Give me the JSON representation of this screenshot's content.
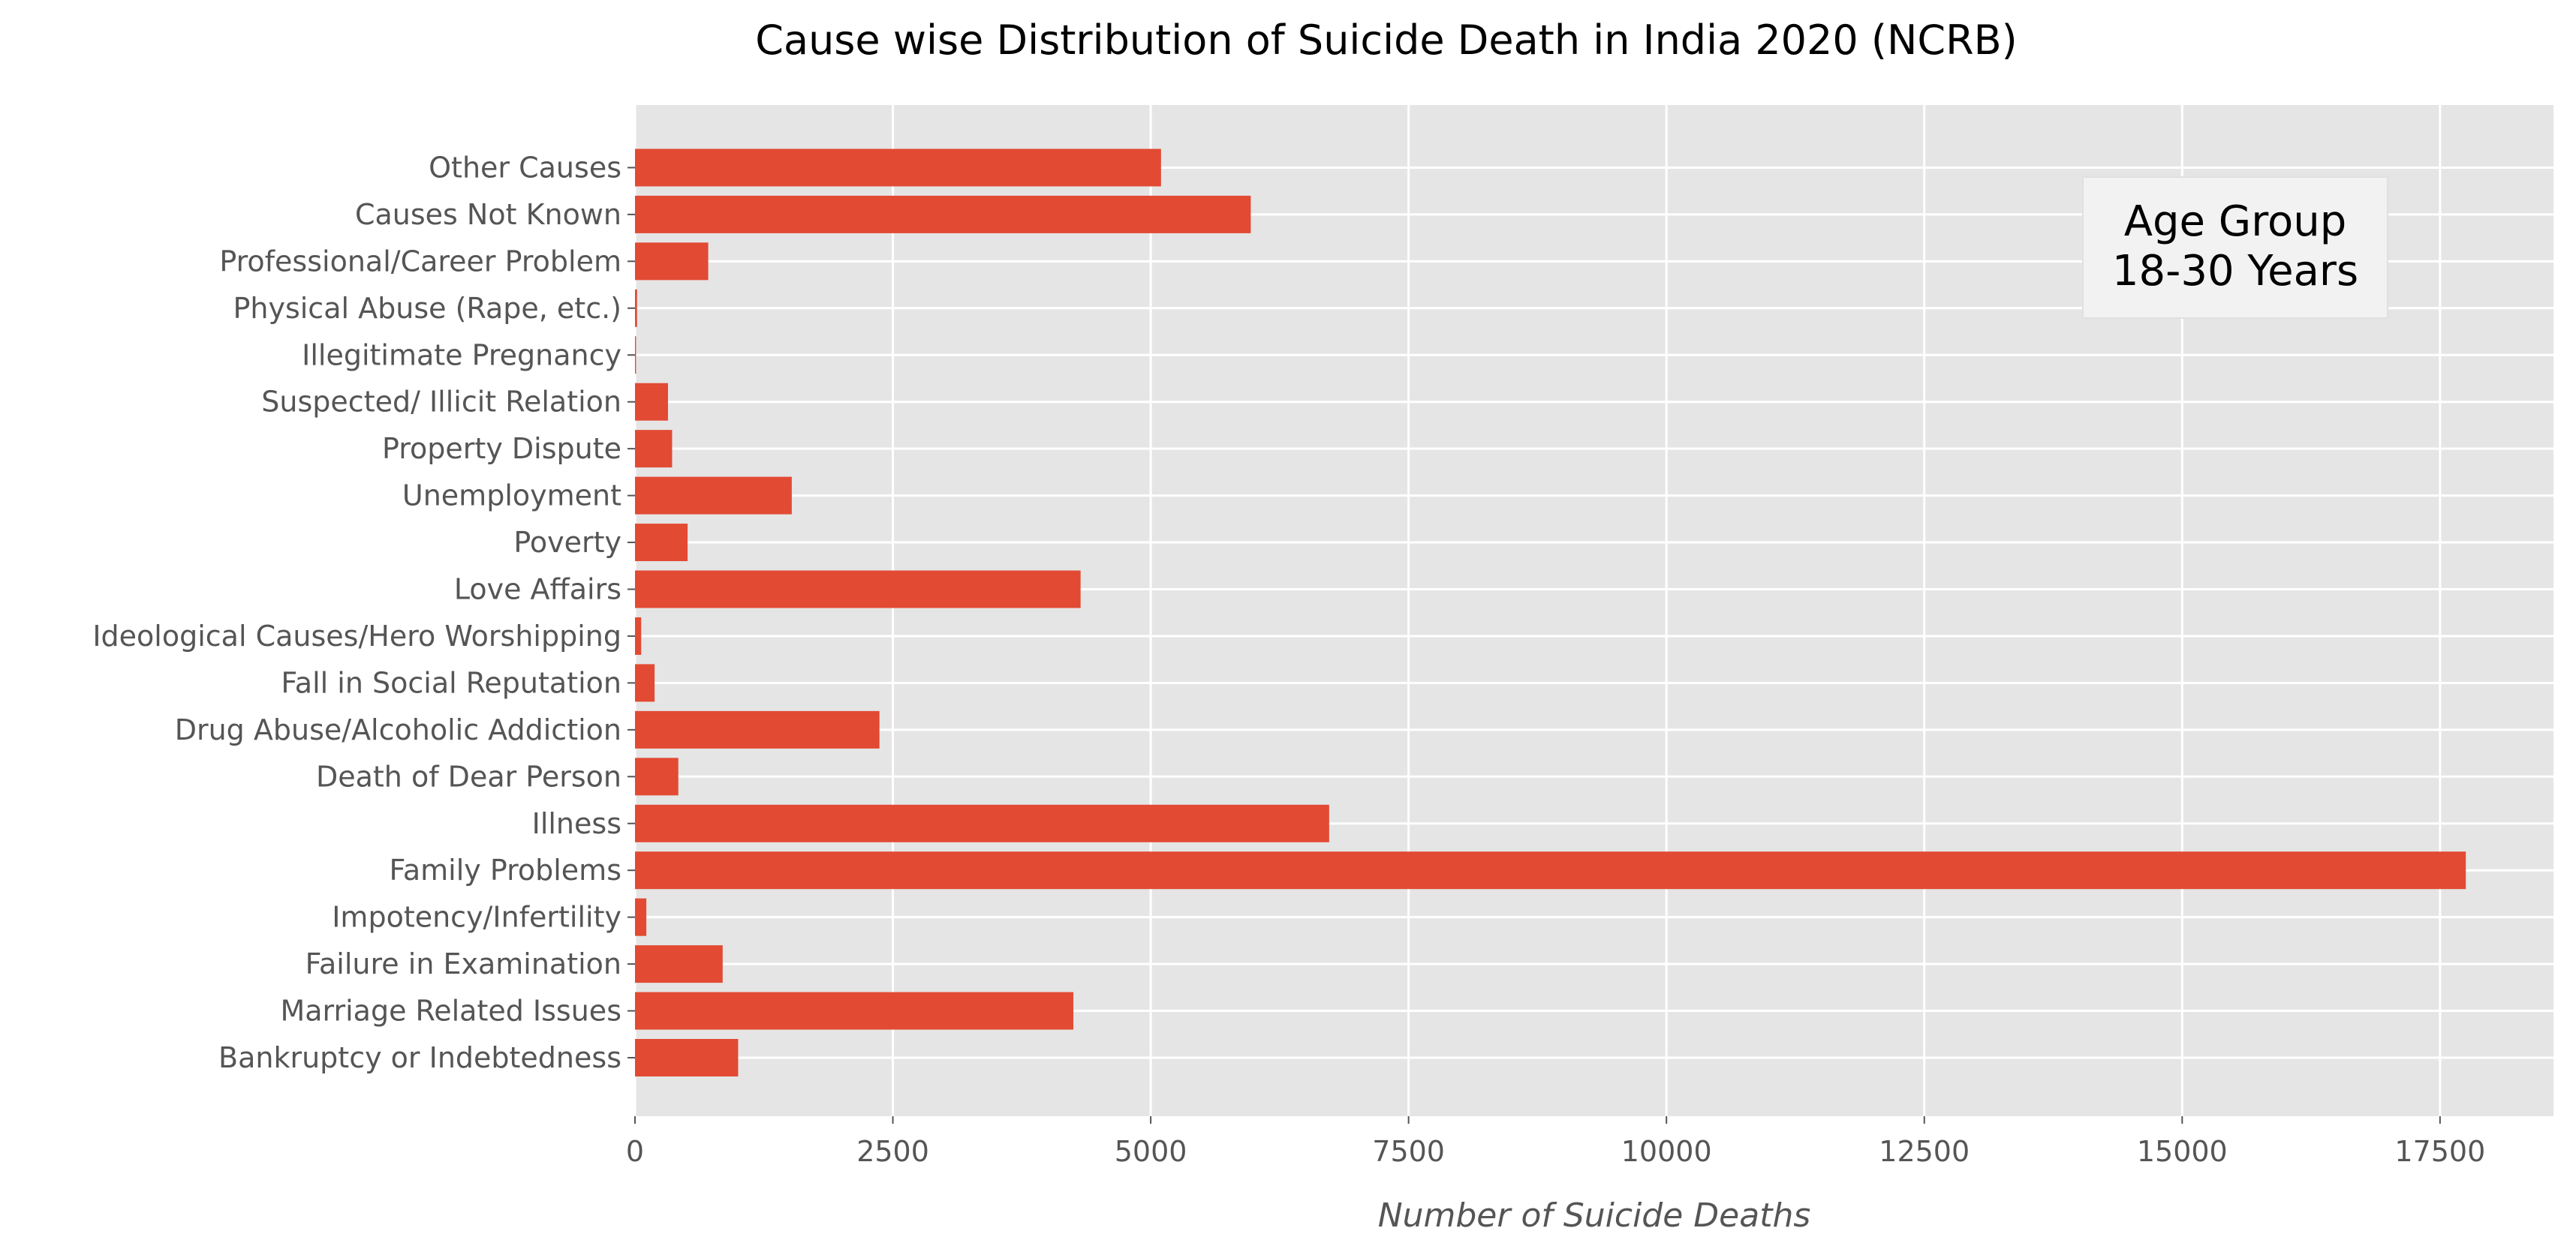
{
  "chart_data": {
    "type": "bar",
    "orientation": "horizontal",
    "title": "Cause wise Distribution of Suicide Death in India 2020 (NCRB)",
    "xlabel": "Number of Suicide Deaths",
    "ylabel": "",
    "xlim": [
      0,
      18600
    ],
    "xticks": [
      0,
      2500,
      5000,
      7500,
      10000,
      12500,
      15000,
      17500
    ],
    "grid": true,
    "bar_color": "#E24A33",
    "background_color": "#E5E5E5",
    "categories": [
      "Bankruptcy or Indebtedness",
      "Marriage Related Issues",
      "Failure in Examination",
      "Impotency/Infertility",
      "Family Problems",
      "Illness",
      "Death of Dear Person",
      "Drug Abuse/Alcoholic Addiction",
      "Fall in Social Reputation",
      "Ideological Causes/Hero Worshipping",
      "Love Affairs",
      "Poverty",
      "Unemployment",
      "Property Dispute",
      "Suspected/ Illicit Relation",
      "Illegitimate Pregnancy",
      "Physical Abuse (Rape, etc.)",
      "Professional/Career Problem",
      "Causes Not Known",
      "Other Causes"
    ],
    "values": [
      1000,
      4250,
      850,
      110,
      17750,
      6730,
      420,
      2370,
      190,
      60,
      4320,
      510,
      1520,
      360,
      320,
      10,
      20,
      710,
      5970,
      5100
    ],
    "annotation": {
      "lines": [
        "Age Group",
        "18-30 Years"
      ],
      "position": "top-right"
    }
  }
}
